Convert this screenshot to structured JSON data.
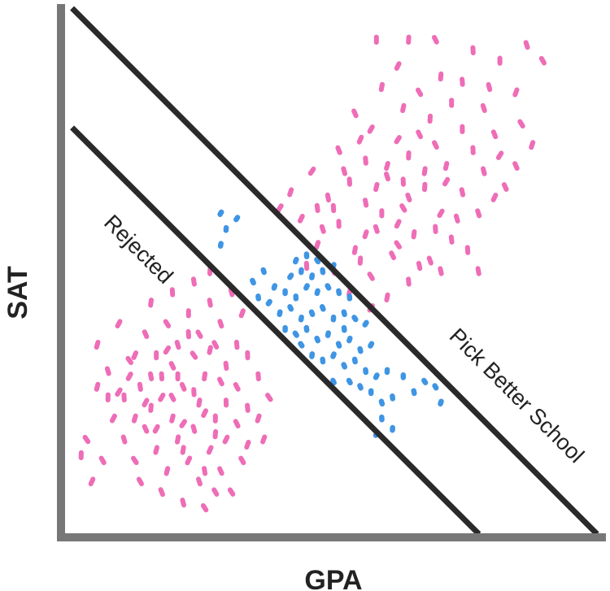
{
  "chart_data": {
    "type": "scatter",
    "title": "",
    "xlabel": "GPA",
    "ylabel": "SAT",
    "xlim": [
      0,
      1
    ],
    "ylim": [
      0,
      1
    ],
    "grid": false,
    "ticks": false,
    "annotations": [
      "Rejected",
      "Pick Better School"
    ],
    "colors": {
      "pink": "#EE6DB7",
      "blue": "#3F95E3",
      "axis": "#777777",
      "boundary": "#2A2A2A"
    },
    "boundaries": [
      {
        "from": [
          0.013,
          0.773
        ],
        "to": [
          0.771,
          0.0
        ]
      },
      {
        "from": [
          0.013,
          1.0
        ],
        "to": [
          0.991,
          0.0
        ]
      }
    ],
    "series": [
      {
        "color": "pink",
        "points": [
          [
            0.58,
            0.94
          ],
          [
            0.64,
            0.94
          ],
          [
            0.69,
            0.94
          ],
          [
            0.86,
            0.93
          ],
          [
            0.76,
            0.92
          ],
          [
            0.81,
            0.9
          ],
          [
            0.89,
            0.9
          ],
          [
            0.62,
            0.89
          ],
          [
            0.7,
            0.87
          ],
          [
            0.74,
            0.86
          ],
          [
            0.79,
            0.85
          ],
          [
            0.84,
            0.84
          ],
          [
            0.59,
            0.85
          ],
          [
            0.66,
            0.84
          ],
          [
            0.72,
            0.82
          ],
          [
            0.78,
            0.81
          ],
          [
            0.63,
            0.81
          ],
          [
            0.54,
            0.8
          ],
          [
            0.68,
            0.79
          ],
          [
            0.74,
            0.77
          ],
          [
            0.8,
            0.76
          ],
          [
            0.85,
            0.78
          ],
          [
            0.57,
            0.77
          ],
          [
            0.62,
            0.75
          ],
          [
            0.69,
            0.74
          ],
          [
            0.76,
            0.73
          ],
          [
            0.81,
            0.72
          ],
          [
            0.51,
            0.73
          ],
          [
            0.56,
            0.71
          ],
          [
            0.64,
            0.72
          ],
          [
            0.71,
            0.7
          ],
          [
            0.78,
            0.69
          ],
          [
            0.84,
            0.7
          ],
          [
            0.46,
            0.69
          ],
          [
            0.53,
            0.67
          ],
          [
            0.6,
            0.68
          ],
          [
            0.67,
            0.66
          ],
          [
            0.74,
            0.65
          ],
          [
            0.82,
            0.66
          ],
          [
            0.42,
            0.65
          ],
          [
            0.49,
            0.64
          ],
          [
            0.56,
            0.63
          ],
          [
            0.63,
            0.62
          ],
          [
            0.7,
            0.61
          ],
          [
            0.77,
            0.61
          ],
          [
            0.44,
            0.6
          ],
          [
            0.51,
            0.59
          ],
          [
            0.58,
            0.58
          ],
          [
            0.65,
            0.57
          ],
          [
            0.72,
            0.56
          ],
          [
            0.47,
            0.55
          ],
          [
            0.54,
            0.54
          ],
          [
            0.61,
            0.53
          ],
          [
            0.68,
            0.52
          ],
          [
            0.75,
            0.54
          ],
          [
            0.5,
            0.5
          ],
          [
            0.57,
            0.49
          ],
          [
            0.64,
            0.48
          ],
          [
            0.53,
            0.46
          ],
          [
            0.6,
            0.45
          ],
          [
            0.57,
            0.43
          ],
          [
            0.66,
            0.51
          ],
          [
            0.45,
            0.51
          ],
          [
            0.59,
            0.61
          ],
          [
            0.63,
            0.67
          ],
          [
            0.55,
            0.75
          ],
          [
            0.5,
            0.62
          ],
          [
            0.69,
            0.58
          ],
          [
            0.73,
            0.6
          ],
          [
            0.48,
            0.58
          ],
          [
            0.6,
            0.7
          ],
          [
            0.66,
            0.76
          ],
          [
            0.52,
            0.69
          ],
          [
            0.56,
            0.57
          ],
          [
            0.62,
            0.59
          ],
          [
            0.4,
            0.62
          ],
          [
            0.71,
            0.67
          ],
          [
            0.8,
            0.64
          ],
          [
            0.87,
            0.74
          ],
          [
            0.67,
            0.69
          ],
          [
            0.55,
            0.52
          ],
          [
            0.62,
            0.55
          ],
          [
            0.7,
            0.5
          ],
          [
            0.77,
            0.5
          ],
          [
            0.64,
            0.64
          ],
          [
            0.47,
            0.62
          ],
          [
            0.58,
            0.66
          ],
          [
            0.06,
            0.36
          ],
          [
            0.08,
            0.31
          ],
          [
            0.1,
            0.27
          ],
          [
            0.12,
            0.33
          ],
          [
            0.14,
            0.28
          ],
          [
            0.16,
            0.24
          ],
          [
            0.18,
            0.3
          ],
          [
            0.2,
            0.26
          ],
          [
            0.22,
            0.21
          ],
          [
            0.24,
            0.27
          ],
          [
            0.26,
            0.23
          ],
          [
            0.28,
            0.19
          ],
          [
            0.3,
            0.25
          ],
          [
            0.32,
            0.21
          ],
          [
            0.34,
            0.17
          ],
          [
            0.09,
            0.22
          ],
          [
            0.11,
            0.18
          ],
          [
            0.13,
            0.14
          ],
          [
            0.15,
            0.2
          ],
          [
            0.17,
            0.16
          ],
          [
            0.19,
            0.12
          ],
          [
            0.21,
            0.18
          ],
          [
            0.23,
            0.14
          ],
          [
            0.25,
            0.1
          ],
          [
            0.27,
            0.16
          ],
          [
            0.29,
            0.12
          ],
          [
            0.31,
            0.08
          ],
          [
            0.07,
            0.14
          ],
          [
            0.04,
            0.18
          ],
          [
            0.03,
            0.15
          ],
          [
            0.05,
            0.1
          ],
          [
            0.13,
            0.34
          ],
          [
            0.15,
            0.38
          ],
          [
            0.17,
            0.34
          ],
          [
            0.19,
            0.4
          ],
          [
            0.21,
            0.36
          ],
          [
            0.23,
            0.42
          ],
          [
            0.25,
            0.38
          ],
          [
            0.27,
            0.44
          ],
          [
            0.29,
            0.4
          ],
          [
            0.31,
            0.46
          ],
          [
            0.33,
            0.42
          ],
          [
            0.2,
            0.32
          ],
          [
            0.22,
            0.28
          ],
          [
            0.24,
            0.34
          ],
          [
            0.26,
            0.3
          ],
          [
            0.28,
            0.36
          ],
          [
            0.3,
            0.32
          ],
          [
            0.32,
            0.28
          ],
          [
            0.34,
            0.34
          ],
          [
            0.36,
            0.3
          ],
          [
            0.38,
            0.26
          ],
          [
            0.36,
            0.22
          ],
          [
            0.11,
            0.26
          ],
          [
            0.13,
            0.22
          ],
          [
            0.16,
            0.3
          ],
          [
            0.18,
            0.26
          ],
          [
            0.2,
            0.22
          ],
          [
            0.22,
            0.16
          ],
          [
            0.24,
            0.2
          ],
          [
            0.26,
            0.12
          ],
          [
            0.28,
            0.08
          ],
          [
            0.3,
            0.18
          ],
          [
            0.33,
            0.14
          ],
          [
            0.14,
            0.1
          ],
          [
            0.18,
            0.08
          ],
          [
            0.22,
            0.06
          ],
          [
            0.26,
            0.05
          ],
          [
            0.16,
            0.44
          ],
          [
            0.2,
            0.46
          ],
          [
            0.24,
            0.48
          ],
          [
            0.27,
            0.5
          ],
          [
            0.1,
            0.4
          ],
          [
            0.08,
            0.26
          ],
          [
            0.34,
            0.24
          ],
          [
            0.29,
            0.29
          ],
          [
            0.17,
            0.2
          ],
          [
            0.25,
            0.25
          ],
          [
            0.21,
            0.3
          ],
          [
            0.12,
            0.3
          ],
          [
            0.27,
            0.35
          ],
          [
            0.23,
            0.38
          ],
          [
            0.19,
            0.35
          ],
          [
            0.15,
            0.25
          ],
          [
            0.32,
            0.36
          ],
          [
            0.28,
            0.22
          ],
          [
            0.06,
            0.28
          ],
          [
            0.37,
            0.18
          ]
        ]
      },
      {
        "color": "blue",
        "points": [
          [
            0.29,
            0.61
          ],
          [
            0.3,
            0.58
          ],
          [
            0.32,
            0.6
          ],
          [
            0.29,
            0.55
          ],
          [
            0.43,
            0.52
          ],
          [
            0.45,
            0.53
          ],
          [
            0.47,
            0.52
          ],
          [
            0.42,
            0.49
          ],
          [
            0.44,
            0.5
          ],
          [
            0.46,
            0.49
          ],
          [
            0.48,
            0.5
          ],
          [
            0.5,
            0.51
          ],
          [
            0.39,
            0.47
          ],
          [
            0.41,
            0.46
          ],
          [
            0.43,
            0.45
          ],
          [
            0.45,
            0.47
          ],
          [
            0.47,
            0.46
          ],
          [
            0.49,
            0.47
          ],
          [
            0.51,
            0.46
          ],
          [
            0.53,
            0.45
          ],
          [
            0.38,
            0.44
          ],
          [
            0.4,
            0.42
          ],
          [
            0.42,
            0.43
          ],
          [
            0.44,
            0.41
          ],
          [
            0.46,
            0.42
          ],
          [
            0.48,
            0.43
          ],
          [
            0.5,
            0.41
          ],
          [
            0.52,
            0.42
          ],
          [
            0.54,
            0.41
          ],
          [
            0.56,
            0.4
          ],
          [
            0.41,
            0.39
          ],
          [
            0.43,
            0.38
          ],
          [
            0.45,
            0.39
          ],
          [
            0.47,
            0.37
          ],
          [
            0.49,
            0.38
          ],
          [
            0.51,
            0.36
          ],
          [
            0.53,
            0.37
          ],
          [
            0.55,
            0.35
          ],
          [
            0.57,
            0.36
          ],
          [
            0.46,
            0.34
          ],
          [
            0.48,
            0.33
          ],
          [
            0.5,
            0.34
          ],
          [
            0.52,
            0.32
          ],
          [
            0.54,
            0.33
          ],
          [
            0.56,
            0.31
          ],
          [
            0.58,
            0.3
          ],
          [
            0.6,
            0.31
          ],
          [
            0.53,
            0.29
          ],
          [
            0.55,
            0.28
          ],
          [
            0.57,
            0.27
          ],
          [
            0.59,
            0.25
          ],
          [
            0.61,
            0.26
          ],
          [
            0.63,
            0.3
          ],
          [
            0.65,
            0.27
          ],
          [
            0.67,
            0.29
          ],
          [
            0.69,
            0.28
          ],
          [
            0.7,
            0.25
          ],
          [
            0.59,
            0.22
          ],
          [
            0.61,
            0.2
          ],
          [
            0.58,
            0.19
          ],
          [
            0.35,
            0.48
          ],
          [
            0.36,
            0.45
          ],
          [
            0.37,
            0.5
          ],
          [
            0.52,
            0.39
          ],
          [
            0.44,
            0.36
          ],
          [
            0.5,
            0.29
          ]
        ]
      }
    ]
  }
}
